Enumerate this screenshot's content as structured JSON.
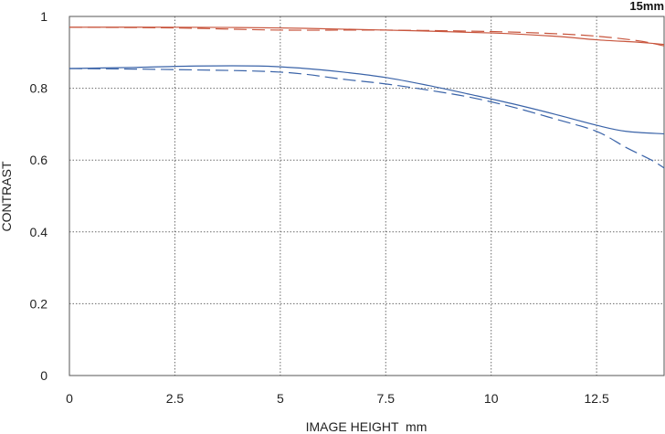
{
  "chart_data": {
    "type": "line",
    "title": "15mm",
    "xlabel": "IMAGE HEIGHT  mm",
    "ylabel": "CONTRAST",
    "xlim": [
      0,
      14.1
    ],
    "ylim": [
      0,
      1
    ],
    "x_ticks": [
      0,
      2.5,
      5,
      7.5,
      10,
      12.5
    ],
    "x_tick_labels": [
      "0",
      "2.5",
      "5",
      "7.5",
      "10",
      "12.5"
    ],
    "y_ticks": [
      0,
      0.2,
      0.4,
      0.6,
      0.8,
      1
    ],
    "y_tick_labels": [
      "0",
      "0.2",
      "0.4",
      "0.6",
      "0.8",
      "1"
    ],
    "grid": true,
    "series": [
      {
        "color": "#c8553d",
        "dash": false,
        "points": [
          [
            0,
            0.97
          ],
          [
            2.5,
            0.97
          ],
          [
            5,
            0.968
          ],
          [
            7.5,
            0.962
          ],
          [
            10,
            0.954
          ],
          [
            11.5,
            0.945
          ],
          [
            12.5,
            0.935
          ],
          [
            13.5,
            0.928
          ],
          [
            14.1,
            0.922
          ]
        ]
      },
      {
        "color": "#c8553d",
        "dash": true,
        "points": [
          [
            0,
            0.97
          ],
          [
            2.5,
            0.968
          ],
          [
            5,
            0.962
          ],
          [
            7.5,
            0.962
          ],
          [
            10,
            0.958
          ],
          [
            11.5,
            0.952
          ],
          [
            12.5,
            0.945
          ],
          [
            13.5,
            0.932
          ],
          [
            14.1,
            0.918
          ]
        ]
      },
      {
        "color": "#3a63a8",
        "dash": false,
        "points": [
          [
            0,
            0.855
          ],
          [
            1.5,
            0.858
          ],
          [
            3,
            0.862
          ],
          [
            4.5,
            0.862
          ],
          [
            5.5,
            0.856
          ],
          [
            6.5,
            0.845
          ],
          [
            7.5,
            0.83
          ],
          [
            8.5,
            0.808
          ],
          [
            9.5,
            0.783
          ],
          [
            10.5,
            0.757
          ],
          [
            11.5,
            0.728
          ],
          [
            12.5,
            0.697
          ],
          [
            13.2,
            0.68
          ],
          [
            14.1,
            0.673
          ]
        ]
      },
      {
        "color": "#3a63a8",
        "dash": true,
        "points": [
          [
            0,
            0.855
          ],
          [
            2.5,
            0.852
          ],
          [
            5,
            0.845
          ],
          [
            6.5,
            0.825
          ],
          [
            7.5,
            0.812
          ],
          [
            8.5,
            0.795
          ],
          [
            9.5,
            0.775
          ],
          [
            10.5,
            0.748
          ],
          [
            11.5,
            0.715
          ],
          [
            12.5,
            0.68
          ],
          [
            13.2,
            0.635
          ],
          [
            13.8,
            0.6
          ],
          [
            14.1,
            0.578
          ]
        ]
      }
    ]
  }
}
